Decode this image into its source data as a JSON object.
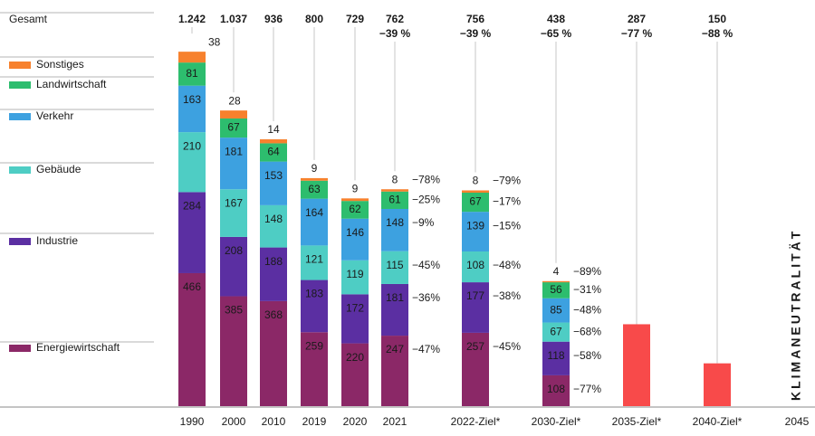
{
  "chart_data": {
    "type": "bar",
    "stacked": true,
    "total_label": "Gesamt",
    "axis_end_label": "2045",
    "vertical_label": "KLIMANEUTRALITÄT",
    "ylim": [
      0,
      1250
    ],
    "legend": [
      {
        "key": "sonstiges",
        "name": "Sonstiges"
      },
      {
        "key": "landwirtschaft",
        "name": "Landwirtschaft"
      },
      {
        "key": "verkehr",
        "name": "Verkehr"
      },
      {
        "key": "gebaeude",
        "name": "Gebäude"
      },
      {
        "key": "industrie",
        "name": "Industrie"
      },
      {
        "key": "energie",
        "name": "Energiewirtschaft"
      }
    ],
    "colors": {
      "energie": "#8b2867",
      "industrie": "#5b2fa2",
      "gebaeude": "#4ecdc4",
      "verkehr": "#3da1e0",
      "landwirtschaft": "#2dbd6e",
      "sonstiges": "#f7812d",
      "target": "#f84a4a"
    },
    "bars": [
      {
        "label": "1990",
        "total": "1.242",
        "pct": "",
        "segments": [
          {
            "key": "energie",
            "value": 466,
            "label": "466",
            "pct": ""
          },
          {
            "key": "industrie",
            "value": 284,
            "label": "284",
            "pct": ""
          },
          {
            "key": "gebaeude",
            "value": 210,
            "label": "210",
            "pct": ""
          },
          {
            "key": "verkehr",
            "value": 163,
            "label": "163",
            "pct": ""
          },
          {
            "key": "landwirtschaft",
            "value": 81,
            "label": "81",
            "pct": ""
          },
          {
            "key": "sonstiges",
            "value": 38,
            "label": "38",
            "pct": ""
          }
        ]
      },
      {
        "label": "2000",
        "total": "1.037",
        "pct": "",
        "segments": [
          {
            "key": "energie",
            "value": 385,
            "label": "385",
            "pct": ""
          },
          {
            "key": "industrie",
            "value": 208,
            "label": "208",
            "pct": ""
          },
          {
            "key": "gebaeude",
            "value": 167,
            "label": "167",
            "pct": ""
          },
          {
            "key": "verkehr",
            "value": 181,
            "label": "181",
            "pct": ""
          },
          {
            "key": "landwirtschaft",
            "value": 67,
            "label": "67",
            "pct": ""
          },
          {
            "key": "sonstiges",
            "value": 28,
            "label": "28",
            "pct": ""
          }
        ]
      },
      {
        "label": "2010",
        "total": "936",
        "pct": "",
        "segments": [
          {
            "key": "energie",
            "value": 368,
            "label": "368",
            "pct": ""
          },
          {
            "key": "industrie",
            "value": 188,
            "label": "188",
            "pct": ""
          },
          {
            "key": "gebaeude",
            "value": 148,
            "label": "148",
            "pct": ""
          },
          {
            "key": "verkehr",
            "value": 153,
            "label": "153",
            "pct": ""
          },
          {
            "key": "landwirtschaft",
            "value": 64,
            "label": "64",
            "pct": ""
          },
          {
            "key": "sonstiges",
            "value": 14,
            "label": "14",
            "pct": ""
          }
        ]
      },
      {
        "label": "2019",
        "total": "800",
        "pct": "",
        "segments": [
          {
            "key": "energie",
            "value": 259,
            "label": "259",
            "pct": ""
          },
          {
            "key": "industrie",
            "value": 183,
            "label": "183",
            "pct": ""
          },
          {
            "key": "gebaeude",
            "value": 121,
            "label": "121",
            "pct": ""
          },
          {
            "key": "verkehr",
            "value": 164,
            "label": "164",
            "pct": ""
          },
          {
            "key": "landwirtschaft",
            "value": 63,
            "label": "63",
            "pct": ""
          },
          {
            "key": "sonstiges",
            "value": 9,
            "label": "9",
            "pct": ""
          }
        ]
      },
      {
        "label": "2020",
        "total": "729",
        "pct": "",
        "segments": [
          {
            "key": "energie",
            "value": 220,
            "label": "220",
            "pct": ""
          },
          {
            "key": "industrie",
            "value": 172,
            "label": "172",
            "pct": ""
          },
          {
            "key": "gebaeude",
            "value": 119,
            "label": "119",
            "pct": ""
          },
          {
            "key": "verkehr",
            "value": 146,
            "label": "146",
            "pct": ""
          },
          {
            "key": "landwirtschaft",
            "value": 62,
            "label": "62",
            "pct": ""
          },
          {
            "key": "sonstiges",
            "value": 9,
            "label": "9",
            "pct": ""
          }
        ]
      },
      {
        "label": "2021",
        "total": "762",
        "pct": "−39 %",
        "segments": [
          {
            "key": "energie",
            "value": 247,
            "label": "247",
            "pct": "−47%"
          },
          {
            "key": "industrie",
            "value": 181,
            "label": "181",
            "pct": "−36%"
          },
          {
            "key": "gebaeude",
            "value": 115,
            "label": "115",
            "pct": "−45%"
          },
          {
            "key": "verkehr",
            "value": 148,
            "label": "148",
            "pct": "−9%"
          },
          {
            "key": "landwirtschaft",
            "value": 61,
            "label": "61",
            "pct": "−25%"
          },
          {
            "key": "sonstiges",
            "value": 8,
            "label": "8",
            "pct": "−78%"
          }
        ]
      },
      {
        "label": "2022-Ziel*",
        "total": "756",
        "pct": "−39 %",
        "segments": [
          {
            "key": "energie",
            "value": 257,
            "label": "257",
            "pct": "−45%"
          },
          {
            "key": "industrie",
            "value": 177,
            "label": "177",
            "pct": "−38%"
          },
          {
            "key": "gebaeude",
            "value": 108,
            "label": "108",
            "pct": "−48%"
          },
          {
            "key": "verkehr",
            "value": 139,
            "label": "139",
            "pct": "−15%"
          },
          {
            "key": "landwirtschaft",
            "value": 67,
            "label": "67",
            "pct": "−17%"
          },
          {
            "key": "sonstiges",
            "value": 8,
            "label": "8",
            "pct": "−79%"
          }
        ]
      },
      {
        "label": "2030-Ziel*",
        "total": "438",
        "pct": "−65 %",
        "segments": [
          {
            "key": "energie",
            "value": 108,
            "label": "108",
            "pct": "−77%"
          },
          {
            "key": "industrie",
            "value": 118,
            "label": "118",
            "pct": "−58%"
          },
          {
            "key": "gebaeude",
            "value": 67,
            "label": "67",
            "pct": "−68%"
          },
          {
            "key": "verkehr",
            "value": 85,
            "label": "85",
            "pct": "−48%"
          },
          {
            "key": "landwirtschaft",
            "value": 56,
            "label": "56",
            "pct": "−31%"
          },
          {
            "key": "sonstiges",
            "value": 4,
            "label": "4",
            "pct": "−89%"
          }
        ]
      },
      {
        "label": "2035-Ziel*",
        "total": "287",
        "pct": "−77 %",
        "segments": [
          {
            "key": "target",
            "value": 287,
            "label": "",
            "pct": ""
          }
        ]
      },
      {
        "label": "2040-Ziel*",
        "total": "150",
        "pct": "−88 %",
        "segments": [
          {
            "key": "target",
            "value": 150,
            "label": "",
            "pct": ""
          }
        ]
      }
    ]
  }
}
